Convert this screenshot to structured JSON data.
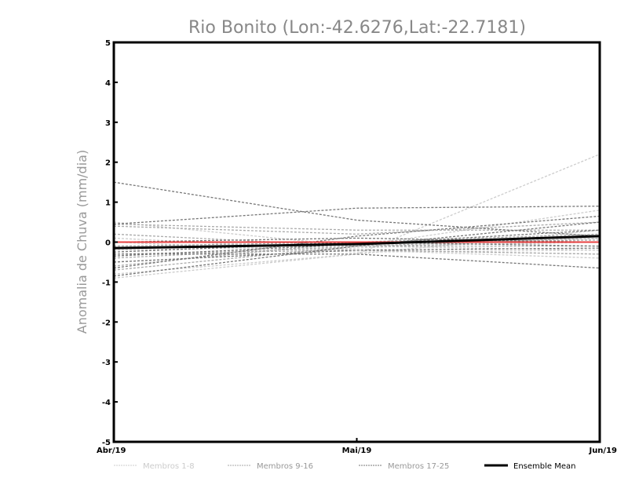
{
  "chart_data": {
    "type": "line",
    "title": "Rio Bonito (Lon:-42.6276,Lat:-22.7181)",
    "xlabel": "",
    "ylabel": "Anomalia de Chuva (mm/dia)",
    "categories": [
      "Abr/19",
      "Mai/19",
      "Jun/19"
    ],
    "ylim": [
      -5,
      5
    ],
    "yticks": [
      "5",
      "4",
      "3",
      "2",
      "1",
      "0",
      "-1",
      "-2",
      "-3",
      "-4",
      "-5"
    ],
    "grid": false,
    "legend_position": "bottom",
    "reference_line": {
      "value": 0,
      "color": "#e84040"
    },
    "groups": [
      {
        "name": "Membros 1-8",
        "color": "#cccccc",
        "members": [
          [
            -0.9,
            -0.3,
            2.2
          ],
          [
            0.5,
            -0.1,
            0.8
          ],
          [
            -0.5,
            -0.2,
            -0.3
          ],
          [
            -0.2,
            -0.1,
            -0.2
          ],
          [
            0.1,
            -0.2,
            -0.4
          ],
          [
            -0.8,
            -0.3,
            0.3
          ],
          [
            0.0,
            -0.25,
            -0.2
          ],
          [
            -0.3,
            -0.15,
            0.1
          ]
        ]
      },
      {
        "name": "Membros 9-16",
        "color": "#aaaaaa",
        "members": [
          [
            0.4,
            0.2,
            0.5
          ],
          [
            -0.4,
            -0.1,
            0.0
          ],
          [
            -0.6,
            0.0,
            0.2
          ],
          [
            0.2,
            -0.1,
            -0.1
          ],
          [
            -0.3,
            -0.2,
            -0.3
          ],
          [
            -0.7,
            -0.1,
            0.1
          ],
          [
            -0.1,
            0.0,
            0.05
          ],
          [
            0.45,
            0.3,
            0.3
          ]
        ]
      },
      {
        "name": "Membros 17-25",
        "color": "#777777",
        "members": [
          [
            1.5,
            0.55,
            0.15
          ],
          [
            0.45,
            0.85,
            0.9
          ],
          [
            -0.65,
            0.15,
            0.65
          ],
          [
            -0.3,
            -0.3,
            -0.65
          ],
          [
            -0.85,
            -0.1,
            0.5
          ],
          [
            -0.35,
            -0.05,
            0.3
          ],
          [
            -0.25,
            0.0,
            -0.1
          ],
          [
            -0.5,
            -0.2,
            -0.15
          ],
          [
            0.0,
            0.1,
            0.0
          ]
        ]
      }
    ],
    "ensemble_mean": {
      "name": "Ensemble Mean",
      "color": "#000000",
      "values": [
        -0.15,
        -0.05,
        0.15
      ]
    }
  }
}
